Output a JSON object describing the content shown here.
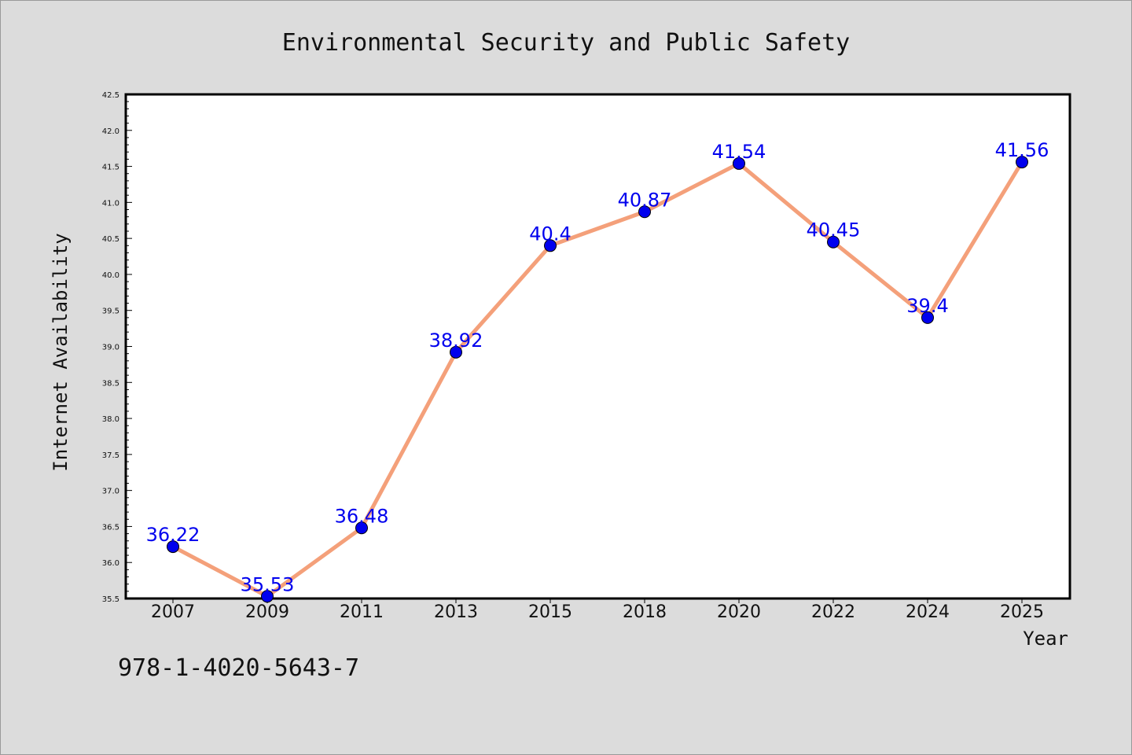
{
  "chart_data": {
    "type": "line",
    "title": "Environmental Security and Public Safety",
    "xlabel": "Year",
    "ylabel": "Internet Availability",
    "categories": [
      "2007",
      "2009",
      "2011",
      "2013",
      "2015",
      "2018",
      "2020",
      "2022",
      "2024",
      "2025"
    ],
    "values": [
      36.22,
      35.53,
      36.48,
      38.92,
      40.4,
      40.87,
      41.54,
      40.45,
      39.4,
      41.56
    ],
    "data_labels": [
      "36.22",
      "35.53",
      "36.48",
      "38.92",
      "40.4",
      "40.87",
      "41.54",
      "40.45",
      "39.4",
      "41.56"
    ],
    "ylim": [
      35.5,
      42.5
    ],
    "yticks": [
      "35.5",
      "36.0",
      "36.5",
      "37.0",
      "37.5",
      "38.0",
      "38.5",
      "39.0",
      "39.5",
      "40.0",
      "40.5",
      "41.0",
      "41.5",
      "42.0",
      "42.5"
    ],
    "grid": false,
    "legend": "none",
    "line_color": "#f4a07a",
    "marker_color": "#0000ee",
    "label_color": "#0000ee"
  },
  "footer_text": "978-1-4020-5643-7"
}
